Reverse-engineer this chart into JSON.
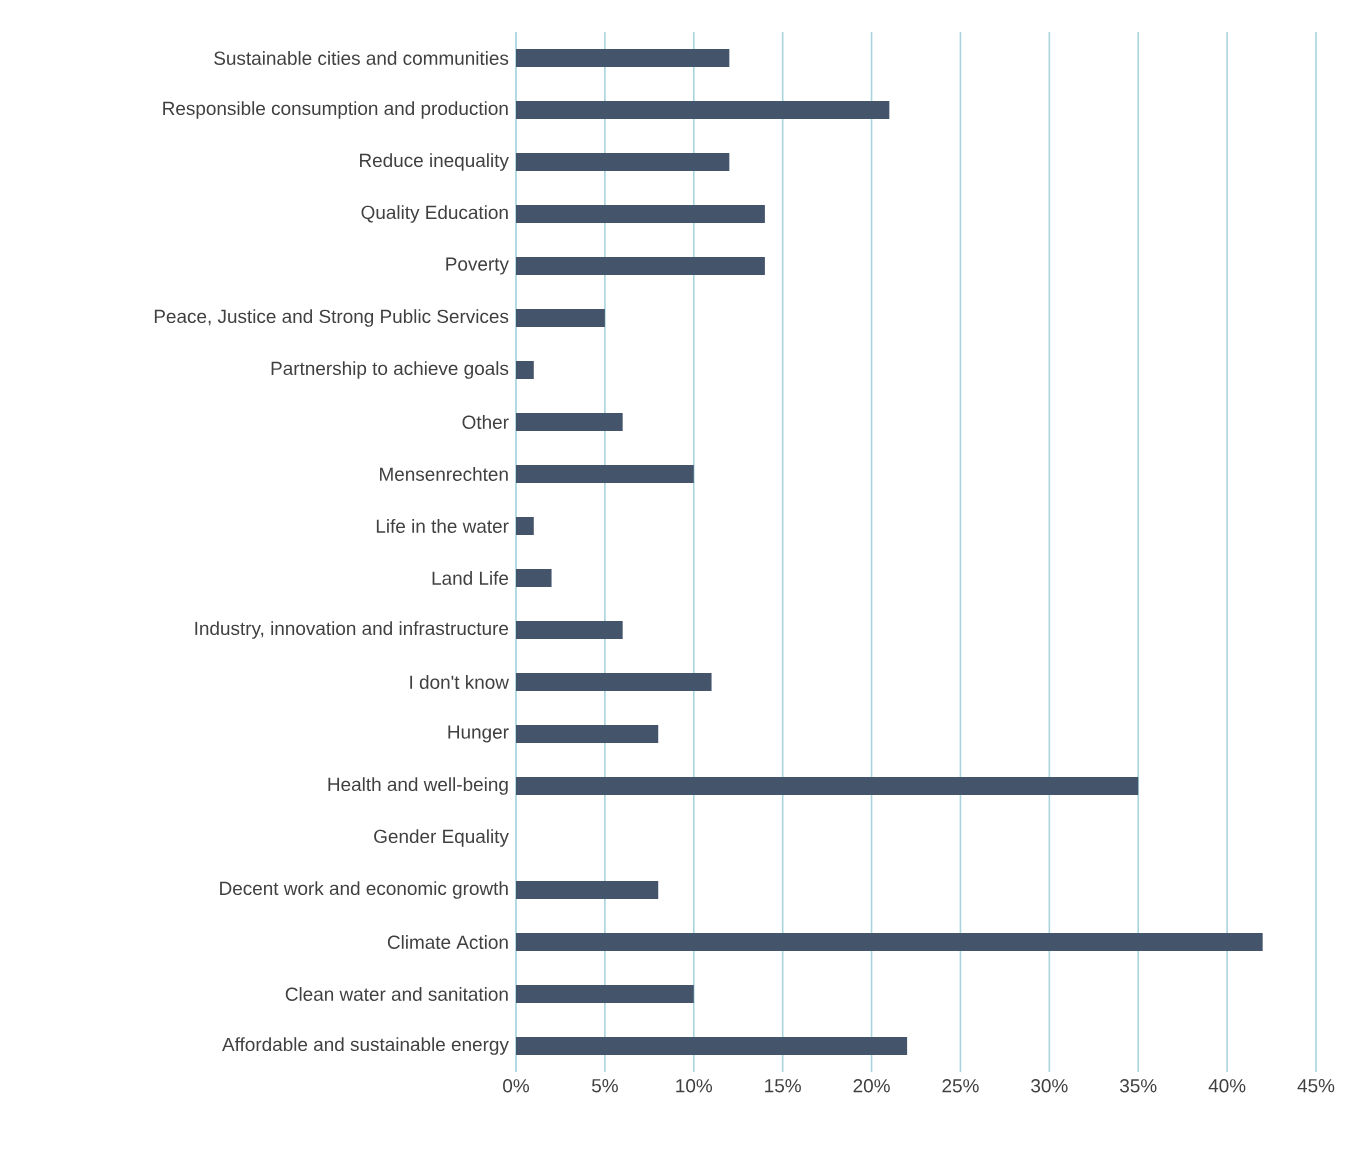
{
  "chart_data": {
    "type": "bar",
    "orientation": "horizontal",
    "categories": [
      "Sustainable cities and communities",
      "Responsible consumption and production",
      "Reduce inequality",
      "Quality Education",
      "Poverty",
      "Peace, Justice and Strong Public Services",
      "Partnership to achieve goals",
      "Other",
      "Mensenrechten",
      "Life in the water",
      "Land Life",
      "Industry, innovation and infrastructure",
      "I don't know",
      "Hunger",
      "Health and well-being",
      "Gender Equality",
      "Decent work and economic growth",
      "Climate Action",
      "Clean water and sanitation",
      "Affordable and sustainable energy"
    ],
    "values": [
      12,
      21,
      12,
      14,
      14,
      5,
      1,
      6,
      10,
      1,
      2,
      6,
      11,
      8,
      35,
      0,
      8,
      42,
      10,
      22
    ],
    "color": "#44546a",
    "xlim": [
      0,
      45
    ],
    "xticks": [
      {
        "value": 0,
        "label": "0%"
      },
      {
        "value": 5,
        "label": "5%"
      },
      {
        "value": 10,
        "label": "10%"
      },
      {
        "value": 15,
        "label": "15%"
      },
      {
        "value": 20,
        "label": "20%"
      },
      {
        "value": 25,
        "label": "25%"
      },
      {
        "value": 30,
        "label": "30%"
      },
      {
        "value": 35,
        "label": "35%"
      },
      {
        "value": 40,
        "label": "40%"
      },
      {
        "value": 45,
        "label": "45%"
      }
    ],
    "grid": "x"
  }
}
